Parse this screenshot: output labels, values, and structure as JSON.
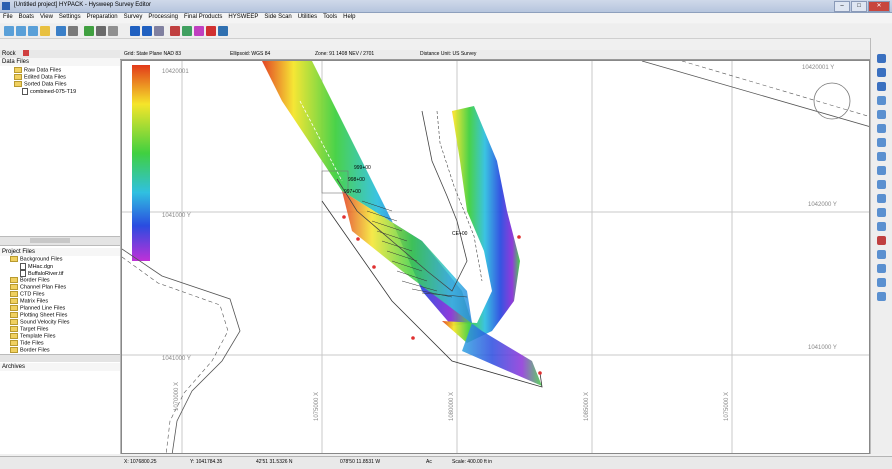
{
  "window": {
    "title": "[Untitled project] HYPACK - Hysweep Survey Editor"
  },
  "menu": [
    "File",
    "Boats",
    "View",
    "Settings",
    "Preparation",
    "Survey",
    "Processing",
    "Final Products",
    "HYSWEEP",
    "Side Scan",
    "Utilities",
    "Tools",
    "Help"
  ],
  "map_header": {
    "grid": "Grid: State Plane NAD 83",
    "ellipsoid": "Ellipsoid: WGS 84",
    "zone": "Zone: 91 1408 NEV / 2701",
    "distance": "Distance Unit: US Survey"
  },
  "left_panel": {
    "title": "Rock",
    "data_files": {
      "heading": "Data Files",
      "items": [
        "Raw Data Files",
        "Edited Data Files",
        "Sorted Data Files",
        "combined-075-T19"
      ]
    },
    "project_files": {
      "heading": "Project Files",
      "items": [
        "Background Files",
        "MHac.dgn",
        "BuffaloRiver.tif",
        "Border Files",
        "Channel Plan Files",
        "CTD Files",
        "Matrix Files",
        "Planned Line Files",
        "Plotting Sheet Files",
        "Sound Velocity Files",
        "Target Files",
        "Template Files",
        "Tide Files",
        "Border Files"
      ]
    },
    "archives_heading": "Archives"
  },
  "map": {
    "grid_labels": [
      "10420001",
      "1041000 Y",
      "10420001 Y",
      "1041000 Y",
      "1042000 Y",
      "1041000 Y"
    ],
    "x_labels": [
      "1070000 X",
      "1075000 X",
      "1080000 X",
      "1085000 X",
      "1075000 X"
    ],
    "annotations": [
      "999+00",
      "998+00",
      "997+00",
      "CE+00"
    ],
    "colors": {
      "swath_high": "#e23a1a",
      "swath_mid": "#f5e52a",
      "swath_low": "#2a4ce0",
      "swath_min": "#c030d8"
    }
  },
  "status": {
    "x": "X: 1076800.25",
    "y": "Y: 1041784.35",
    "lat": "42'51 31.5326 N",
    "lon": "078'50 11.8531 W",
    "depth": "Ac",
    "scale": "Scale: 400.00 ft in"
  }
}
